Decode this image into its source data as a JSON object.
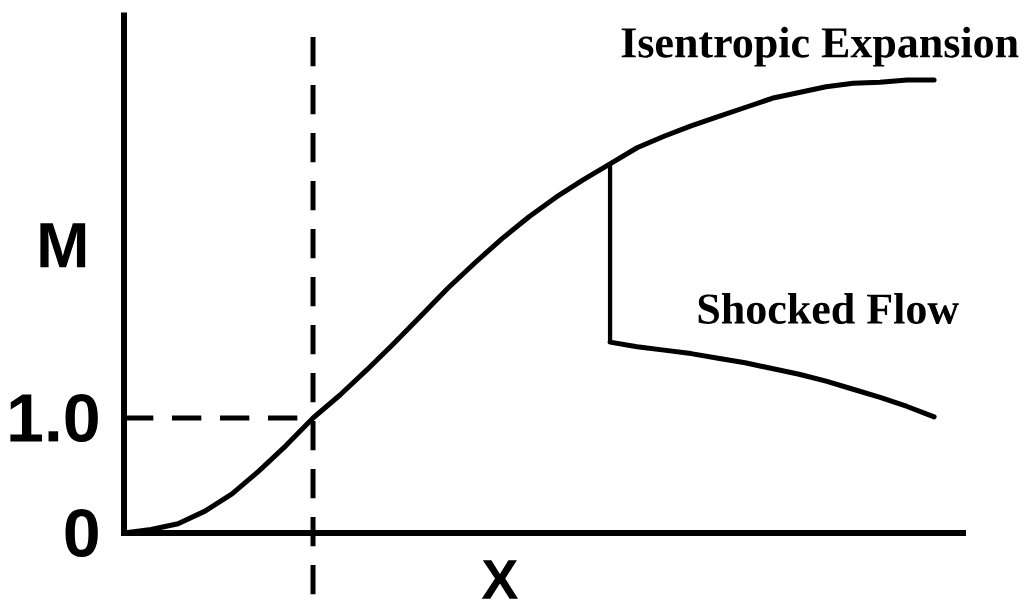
{
  "chart_data": {
    "type": "line",
    "xlabel": "X",
    "ylabel": "M",
    "categories": [
      null,
      null,
      null,
      null,
      null,
      null,
      null,
      null,
      null,
      null,
      null,
      null,
      null,
      null,
      null,
      null,
      null,
      null,
      null,
      null,
      null,
      null,
      null,
      null,
      null,
      null,
      null,
      null,
      null,
      null,
      null
    ],
    "ylim": [
      0,
      4.5
    ],
    "yticks": [
      0,
      {
        "value": 1,
        "label": "1.0"
      }
    ],
    "tick_labels": "y",
    "series": [
      {
        "name": "Isentropic Expansion",
        "color": "#000000",
        "values": [
          0,
          0.03,
          0.08,
          0.19,
          0.34,
          0.54,
          0.76,
          1.0,
          1.2,
          1.42,
          1.65,
          1.89,
          2.13,
          2.35,
          2.56,
          2.75,
          2.92,
          3.07,
          3.21,
          3.35,
          3.45,
          3.54,
          3.62,
          3.7,
          3.78,
          3.83,
          3.88,
          3.91,
          3.92,
          3.94,
          3.94
        ]
      },
      {
        "name": "Shocked Flow",
        "color": "#000000",
        "values": [
          null,
          null,
          null,
          null,
          null,
          null,
          null,
          null,
          null,
          null,
          null,
          null,
          null,
          null,
          null,
          null,
          null,
          null,
          1.66,
          1.62,
          1.59,
          1.56,
          1.52,
          1.48,
          1.43,
          1.38,
          1.32,
          1.25,
          1.18,
          1.1,
          1.01
        ],
        "errors": [
          null,
          null,
          null,
          null,
          null,
          null,
          null,
          null,
          null,
          null,
          null,
          null,
          null,
          null,
          null,
          null,
          null,
          null,
          [
            1.66,
            3.21
          ],
          null,
          null,
          null,
          null,
          null,
          null,
          null,
          null,
          null,
          null,
          null,
          null
        ]
      }
    ],
    "ref_lines": [
      {
        "axis": "y",
        "value": 1,
        "line_style": "dashed",
        "color": "#000000"
      }
    ]
  }
}
